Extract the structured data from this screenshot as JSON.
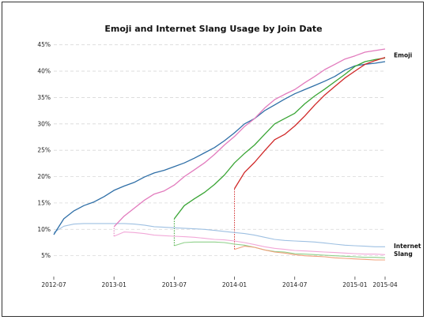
{
  "chart_data": {
    "type": "line",
    "title": "Emoji and Internet Slang Usage by Join Date",
    "xlabel": "",
    "ylabel": "",
    "x_tick_labels": [
      "2012-07",
      "2013-01",
      "2013-07",
      "2014-01",
      "2014-07",
      "2015-01",
      "2015-04"
    ],
    "x_ticks": [
      0,
      6,
      12,
      18,
      24,
      30,
      33
    ],
    "y_tick_labels": [
      "5%",
      "10%",
      "15%",
      "20%",
      "25%",
      "30%",
      "35%",
      "40%",
      "45%"
    ],
    "y_ticks": [
      5,
      10,
      15,
      20,
      25,
      30,
      35,
      40,
      45
    ],
    "xlim": [
      0,
      33
    ],
    "ylim": [
      3,
      46
    ],
    "grid": "horizontal-dashed",
    "series_end_labels": [
      {
        "text": "Emoji",
        "y": 43.0
      },
      {
        "text": "Internet",
        "y": 6.8
      },
      {
        "text": "Slang",
        "y": 5.3
      }
    ],
    "series": [
      {
        "group": "emoji",
        "color": "#2f6fa7",
        "x": [
          0,
          1,
          2,
          3,
          4,
          5,
          6,
          7,
          8,
          9,
          10,
          11,
          12,
          13,
          14,
          15,
          16,
          17,
          18,
          19,
          20,
          21,
          22,
          23,
          24,
          25,
          26,
          27,
          28,
          29,
          30,
          31,
          32,
          33
        ],
        "values": [
          9.0,
          12.0,
          13.5,
          14.5,
          15.2,
          16.2,
          17.4,
          18.2,
          18.9,
          19.9,
          20.7,
          21.2,
          21.9,
          22.6,
          23.5,
          24.5,
          25.5,
          26.8,
          28.3,
          30.0,
          31.0,
          32.5,
          33.6,
          34.7,
          35.7,
          36.5,
          37.3,
          38.1,
          39.0,
          40.2,
          41.0,
          41.3,
          41.5,
          41.8
        ]
      },
      {
        "group": "emoji",
        "color": "#e27bbd",
        "x": [
          6,
          7,
          8,
          9,
          10,
          11,
          12,
          13,
          14,
          15,
          16,
          17,
          18,
          19,
          20,
          21,
          22,
          23,
          24,
          25,
          26,
          27,
          28,
          29,
          30,
          31,
          32,
          33
        ],
        "values": [
          10.5,
          12.5,
          14.0,
          15.5,
          16.7,
          17.3,
          18.4,
          20.0,
          21.3,
          22.6,
          24.2,
          26.0,
          27.6,
          29.5,
          31.0,
          33.0,
          34.6,
          35.6,
          36.5,
          37.8,
          39.0,
          40.3,
          41.3,
          42.3,
          42.9,
          43.6,
          43.9,
          44.2
        ]
      },
      {
        "group": "emoji",
        "color": "#3aa535",
        "x": [
          12,
          13,
          14,
          15,
          16,
          17,
          18,
          19,
          20,
          21,
          22,
          23,
          24,
          25,
          26,
          27,
          28,
          29,
          30,
          31,
          32,
          33
        ],
        "values": [
          12.0,
          14.5,
          15.8,
          17.0,
          18.5,
          20.3,
          22.6,
          24.4,
          26.0,
          28.0,
          30.0,
          31.0,
          32.0,
          33.8,
          35.3,
          36.6,
          38.0,
          39.4,
          40.9,
          41.8,
          42.2,
          42.5
        ]
      },
      {
        "group": "emoji",
        "color": "#d02828",
        "x": [
          18,
          19,
          20,
          21,
          22,
          23,
          24,
          25,
          26,
          27,
          28,
          29,
          30,
          31,
          32,
          33
        ],
        "values": [
          17.7,
          20.8,
          22.7,
          24.9,
          27.0,
          28.0,
          29.6,
          31.5,
          33.6,
          35.5,
          37.1,
          38.7,
          40.0,
          41.3,
          42.0,
          42.6
        ]
      },
      {
        "group": "slang",
        "color": "#9ec0e2",
        "x": [
          0,
          1,
          2,
          3,
          4,
          5,
          6,
          7,
          8,
          9,
          10,
          11,
          12,
          13,
          14,
          15,
          16,
          17,
          18,
          19,
          20,
          21,
          22,
          23,
          24,
          25,
          26,
          27,
          28,
          29,
          30,
          31,
          32,
          33
        ],
        "values": [
          9.4,
          10.6,
          11.0,
          11.1,
          11.1,
          11.1,
          11.1,
          11.1,
          11.0,
          10.8,
          10.5,
          10.4,
          10.3,
          10.2,
          10.1,
          10.0,
          9.8,
          9.6,
          9.4,
          9.2,
          8.9,
          8.5,
          8.1,
          7.9,
          7.8,
          7.7,
          7.6,
          7.4,
          7.2,
          7.0,
          6.9,
          6.8,
          6.7,
          6.7
        ]
      },
      {
        "group": "slang",
        "color": "#f2a8d8",
        "x": [
          6,
          7,
          8,
          9,
          10,
          11,
          12,
          13,
          14,
          15,
          16,
          17,
          18,
          19,
          20,
          21,
          22,
          23,
          24,
          25,
          26,
          27,
          28,
          29,
          30,
          31,
          32,
          33
        ],
        "values": [
          8.7,
          9.5,
          9.4,
          9.2,
          8.9,
          8.8,
          8.7,
          8.6,
          8.5,
          8.3,
          8.1,
          8.0,
          7.8,
          7.5,
          7.1,
          6.7,
          6.4,
          6.2,
          6.0,
          5.9,
          5.8,
          5.7,
          5.6,
          5.5,
          5.4,
          5.3,
          5.3,
          5.2
        ]
      },
      {
        "group": "slang",
        "color": "#8fd08a",
        "x": [
          12,
          13,
          14,
          15,
          16,
          17,
          18,
          19,
          20,
          21,
          22,
          23,
          24,
          25,
          26,
          27,
          28,
          29,
          30,
          31,
          32,
          33
        ],
        "values": [
          6.9,
          7.5,
          7.6,
          7.6,
          7.6,
          7.5,
          7.2,
          7.0,
          6.6,
          6.1,
          5.8,
          5.7,
          5.4,
          5.3,
          5.2,
          5.1,
          5.0,
          4.9,
          4.8,
          4.7,
          4.7,
          4.6
        ]
      },
      {
        "group": "slang",
        "color": "#f0a07a",
        "x": [
          18,
          19,
          20,
          21,
          22,
          23,
          24,
          25,
          26,
          27,
          28,
          29,
          30,
          31,
          32,
          33
        ],
        "values": [
          6.2,
          6.8,
          6.6,
          6.1,
          5.7,
          5.5,
          5.2,
          5.0,
          4.9,
          4.8,
          4.6,
          4.5,
          4.4,
          4.3,
          4.2,
          4.2
        ]
      }
    ],
    "cohort_connectors": [
      {
        "x": 6,
        "from": 8.7,
        "to": 10.5,
        "color": "#e27bbd"
      },
      {
        "x": 12,
        "from": 6.9,
        "to": 12.0,
        "color": "#3aa535"
      },
      {
        "x": 18,
        "from": 6.2,
        "to": 17.7,
        "color": "#d02828"
      }
    ]
  }
}
